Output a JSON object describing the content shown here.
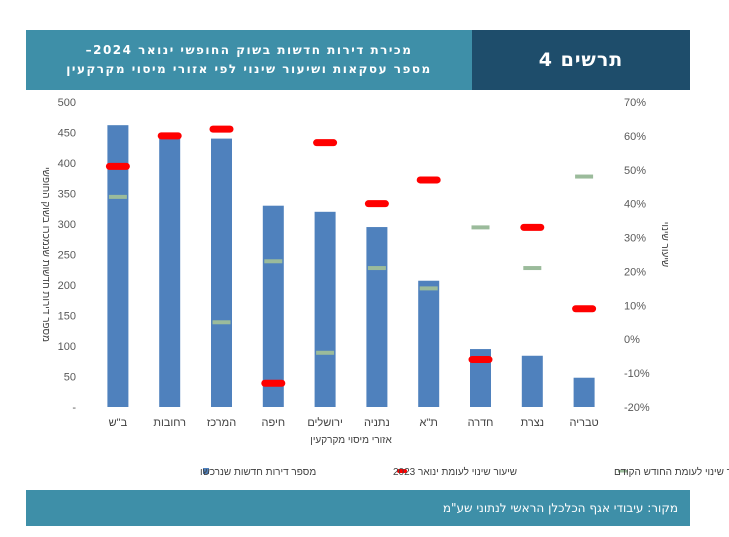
{
  "header": {
    "title_line1": "מכירת דירות חדשות בשוק החופשי ינואר 2024–",
    "title_line2": "מספר עסקאות ושיעור שינוי לפי אזורי מיסוי מקרקעין",
    "figure_label": "תרשים 4"
  },
  "footer": {
    "source": "מקור: עיבודי אגף הכלכלן הראשי לנתוני שע\"מ"
  },
  "colors": {
    "bar": "#4f81bd",
    "yoy": "#ff0000",
    "mom": "#9bbb9b",
    "header": "#3e8fa8",
    "label_bg": "#1e4d6b"
  },
  "chart_data": {
    "type": "bar",
    "title": "מכירת דירות חדשות בשוק החופשי ינואר 2024– מספר עסקאות ושיעור שינוי לפי אזורי מיסוי מקרקעין",
    "xlabel": "אזורי מיסוי מקרקעין",
    "ylabel": "מספר דירות חדשות שנמכרו בשוק החופשי",
    "y2label": "שיעור שינוי",
    "categories": [
      "ב\"ש",
      "רחובות",
      "המרכז",
      "חיפה",
      "ירושלים",
      "נתניה",
      "ת\"א",
      "חדרה",
      "נצרת",
      "טבריה"
    ],
    "ylim": [
      0,
      500
    ],
    "yticks": [
      "500",
      "450",
      "400",
      "350",
      "300",
      "250",
      "200",
      "150",
      "100",
      "50",
      "-"
    ],
    "ytick_values": [
      500,
      450,
      400,
      350,
      300,
      250,
      200,
      150,
      100,
      50,
      0
    ],
    "y2lim": [
      -20,
      70
    ],
    "y2ticks": [
      "70%",
      "60%",
      "50%",
      "40%",
      "30%",
      "20%",
      "10%",
      "0%",
      "-10%",
      "-20%"
    ],
    "y2tick_values": [
      70,
      60,
      50,
      40,
      30,
      20,
      10,
      0,
      -10,
      -20
    ],
    "series": [
      {
        "name": "מספר דירות חדשות שנרכשו",
        "axis": "left",
        "kind": "bar",
        "values": [
          462,
          440,
          440,
          330,
          320,
          295,
          207,
          95,
          84,
          48
        ]
      },
      {
        "name": "שיעור שינוי לעומת ינואר 2023",
        "axis": "right",
        "kind": "marker",
        "values": [
          51,
          60,
          62,
          -13,
          58,
          40,
          47,
          -6,
          33,
          9
        ]
      },
      {
        "name": "שיעור שינוי לעומת החודש הקודם",
        "axis": "right",
        "kind": "marker",
        "values": [
          42,
          60,
          5,
          23,
          -4,
          21,
          15,
          33,
          21,
          48
        ]
      }
    ],
    "legend": [
      {
        "label": "מספר דירות חדשות שנרכשו",
        "key": "bar"
      },
      {
        "label": "שיעור שינוי לעומת ינואר 2023",
        "key": "yoy"
      },
      {
        "label": "שיעור שינוי לעומת החודש הקודם",
        "key": "mom"
      }
    ]
  }
}
